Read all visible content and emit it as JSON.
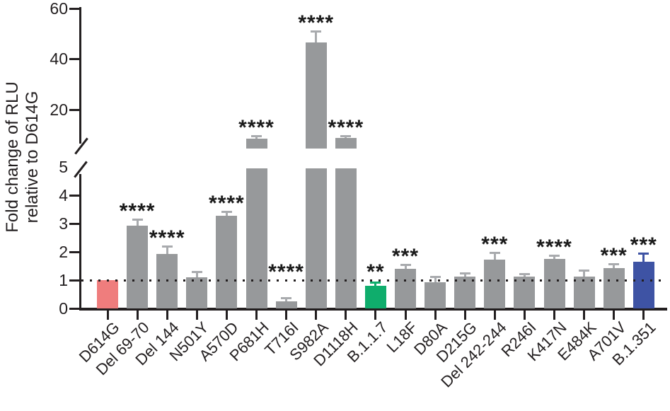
{
  "colors": {
    "red": "#EF7D7D",
    "gray": "#97999B",
    "green": "#0FAD6C",
    "blue": "#3E53A4",
    "gray_error": "#A9ABAE",
    "axis": "#231F20"
  },
  "chart_data": {
    "type": "bar",
    "title": "",
    "ylabel_lines": [
      "Fold change of RLU",
      "relative to D614G"
    ],
    "xlabel": "",
    "y_axis": {
      "broken": true,
      "lower_range": [
        0,
        5
      ],
      "upper_range": [
        5,
        60
      ],
      "lower_ticks": [
        0,
        1,
        2,
        3,
        4,
        5
      ],
      "upper_ticks": [
        20,
        40,
        60
      ]
    },
    "reference_line": {
      "value": 1,
      "style": "dotted"
    },
    "legend": null,
    "grid": false,
    "bars": [
      {
        "label": "D614G",
        "value": 1.0,
        "error": 0,
        "stars": "",
        "color": "red"
      },
      {
        "label": "Del 69-70",
        "value": 2.93,
        "error": 0.23,
        "stars": "****",
        "color": "gray"
      },
      {
        "label": "Del 144",
        "value": 1.93,
        "error": 0.28,
        "stars": "****",
        "color": "gray"
      },
      {
        "label": "N501Y",
        "value": 1.1,
        "error": 0.19,
        "stars": "",
        "color": "gray"
      },
      {
        "label": "A570D",
        "value": 3.28,
        "error": 0.14,
        "stars": "****",
        "color": "gray"
      },
      {
        "label": "P681H",
        "value": 8.5,
        "error": 1.0,
        "stars": "****",
        "color": "gray"
      },
      {
        "label": "T716I",
        "value": 0.25,
        "error": 0.12,
        "stars": "****",
        "color": "gray"
      },
      {
        "label": "S982A",
        "value": 46.5,
        "error": 4.5,
        "stars": "****",
        "color": "gray"
      },
      {
        "label": "D1118H",
        "value": 8.6,
        "error": 0.9,
        "stars": "****",
        "color": "gray"
      },
      {
        "label": "B.1.1.7",
        "value": 0.8,
        "error": 0.13,
        "stars": "**",
        "color": "green"
      },
      {
        "label": "L18F",
        "value": 1.4,
        "error": 0.15,
        "stars": "***",
        "color": "gray"
      },
      {
        "label": "D80A",
        "value": 0.92,
        "error": 0.2,
        "stars": "",
        "color": "gray"
      },
      {
        "label": "D215G",
        "value": 1.12,
        "error": 0.14,
        "stars": "",
        "color": "gray"
      },
      {
        "label": "Del 242-244",
        "value": 1.73,
        "error": 0.25,
        "stars": "***",
        "color": "gray"
      },
      {
        "label": "R246I",
        "value": 1.12,
        "error": 0.11,
        "stars": "",
        "color": "gray"
      },
      {
        "label": "K417N",
        "value": 1.75,
        "error": 0.12,
        "stars": "****",
        "color": "gray"
      },
      {
        "label": "E484K",
        "value": 1.12,
        "error": 0.24,
        "stars": "",
        "color": "gray"
      },
      {
        "label": "A701V",
        "value": 1.42,
        "error": 0.16,
        "stars": "***",
        "color": "gray"
      },
      {
        "label": "B.1.351",
        "value": 1.65,
        "error": 0.3,
        "stars": "***",
        "color": "blue"
      }
    ]
  }
}
